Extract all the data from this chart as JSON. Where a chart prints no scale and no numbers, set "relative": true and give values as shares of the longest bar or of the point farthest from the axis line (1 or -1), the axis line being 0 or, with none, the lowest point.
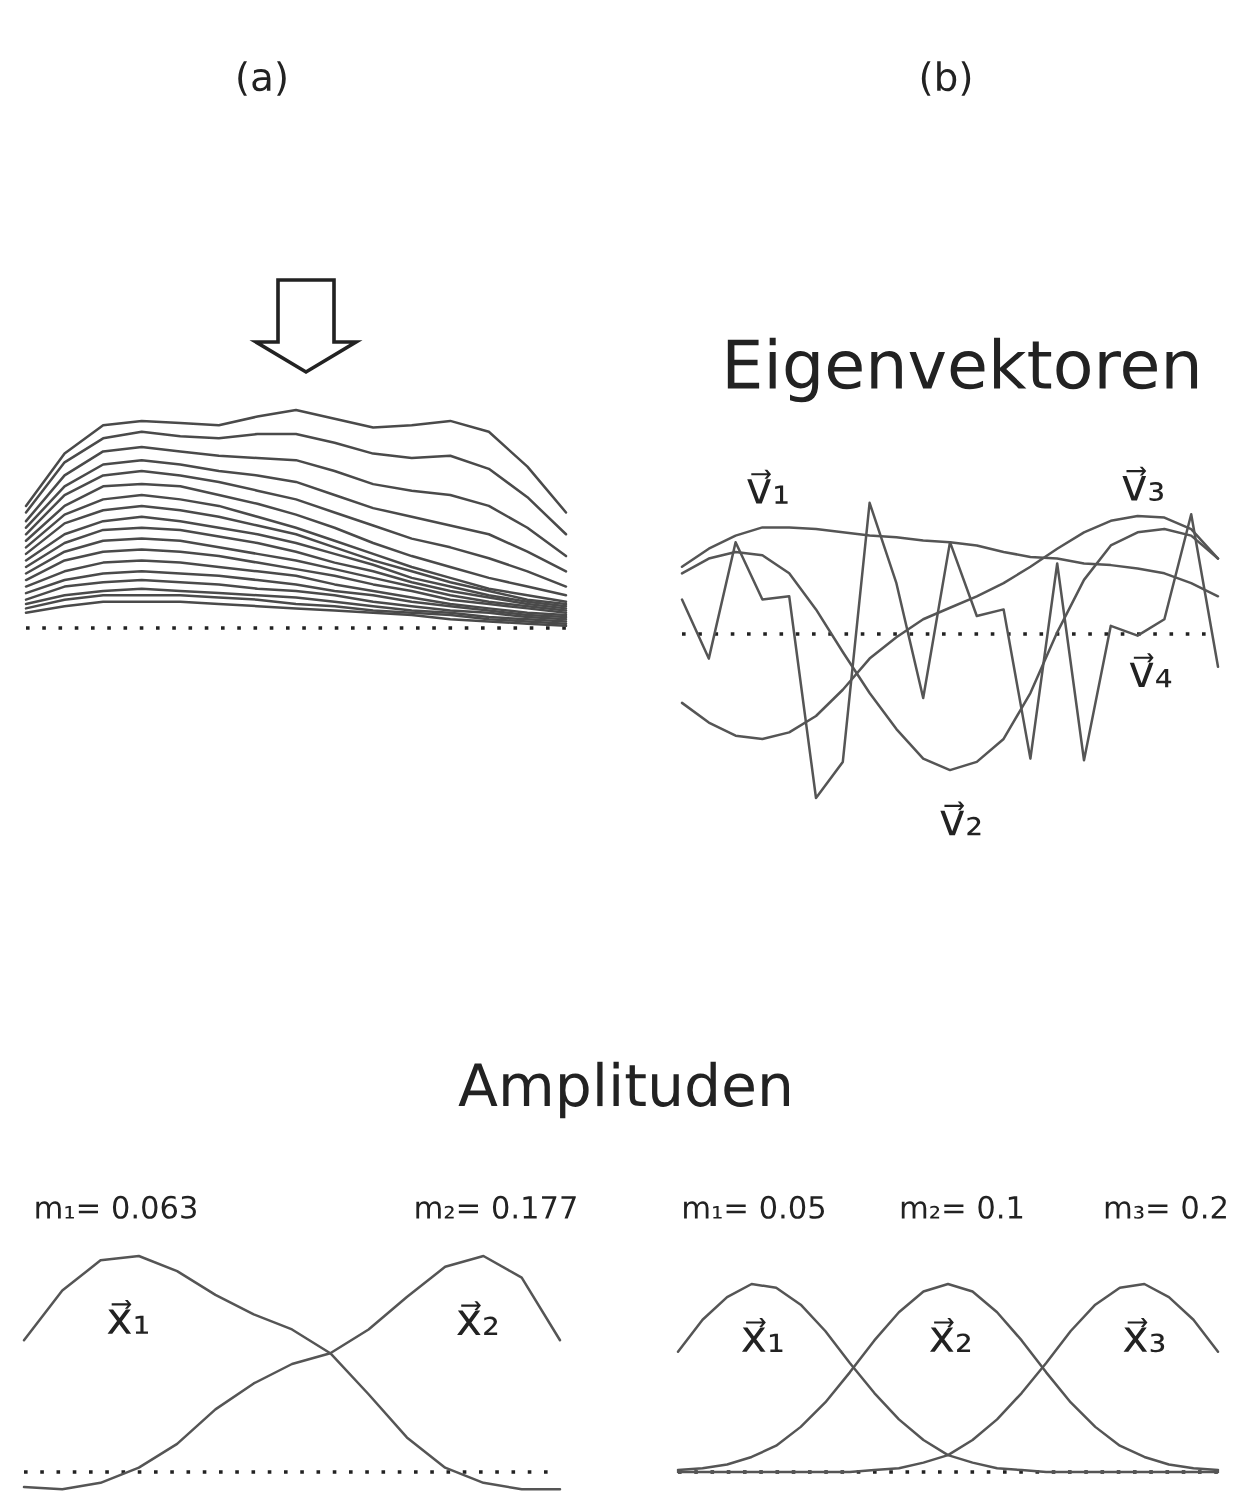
{
  "chart_data": [
    {
      "type": "line",
      "title": "(a)",
      "relative": true,
      "tick_labels": false,
      "categories": [
        null,
        null,
        null,
        null,
        null,
        null,
        null,
        null,
        null,
        null,
        null,
        null,
        null,
        null,
        null
      ],
      "ref_lines": [
        {
          "axis": "y",
          "value": 0,
          "line_style": "dotted"
        }
      ],
      "series": [
        {
          "color": "#4a4a4a",
          "values": [
            0.56,
            0.8,
            0.93,
            0.95,
            0.94,
            0.93,
            0.97,
            1.0,
            0.96,
            0.92,
            0.93,
            0.95,
            0.9,
            0.74,
            0.53
          ]
        },
        {
          "color": "#4a4a4a",
          "values": [
            0.53,
            0.76,
            0.87,
            0.9,
            0.88,
            0.87,
            0.89,
            0.89,
            0.85,
            0.8,
            0.78,
            0.79,
            0.73,
            0.6,
            0.43
          ]
        },
        {
          "color": "#4a4a4a",
          "values": [
            0.49,
            0.7,
            0.81,
            0.83,
            0.81,
            0.79,
            0.78,
            0.77,
            0.72,
            0.66,
            0.63,
            0.61,
            0.56,
            0.46,
            0.33
          ]
        },
        {
          "color": "#4a4a4a",
          "values": [
            0.46,
            0.65,
            0.75,
            0.77,
            0.75,
            0.72,
            0.7,
            0.67,
            0.61,
            0.55,
            0.51,
            0.47,
            0.43,
            0.35,
            0.26
          ]
        },
        {
          "color": "#4a4a4a",
          "values": [
            0.43,
            0.61,
            0.7,
            0.72,
            0.7,
            0.67,
            0.63,
            0.59,
            0.53,
            0.47,
            0.41,
            0.37,
            0.32,
            0.26,
            0.19
          ]
        },
        {
          "color": "#4a4a4a",
          "values": [
            0.4,
            0.56,
            0.65,
            0.66,
            0.65,
            0.61,
            0.57,
            0.52,
            0.46,
            0.39,
            0.33,
            0.28,
            0.23,
            0.19,
            0.15
          ]
        },
        {
          "color": "#4a4a4a",
          "values": [
            0.37,
            0.52,
            0.59,
            0.61,
            0.59,
            0.56,
            0.51,
            0.46,
            0.4,
            0.34,
            0.28,
            0.23,
            0.18,
            0.15,
            0.12
          ]
        },
        {
          "color": "#4a4a4a",
          "values": [
            0.34,
            0.48,
            0.54,
            0.56,
            0.54,
            0.51,
            0.47,
            0.43,
            0.37,
            0.31,
            0.26,
            0.21,
            0.17,
            0.13,
            0.11
          ]
        },
        {
          "color": "#4a4a4a",
          "values": [
            0.31,
            0.43,
            0.49,
            0.51,
            0.49,
            0.46,
            0.43,
            0.39,
            0.34,
            0.29,
            0.23,
            0.19,
            0.15,
            0.12,
            0.1
          ]
        },
        {
          "color": "#4a4a4a",
          "values": [
            0.28,
            0.39,
            0.45,
            0.46,
            0.45,
            0.42,
            0.39,
            0.35,
            0.3,
            0.26,
            0.21,
            0.17,
            0.14,
            0.11,
            0.09
          ]
        },
        {
          "color": "#4a4a4a",
          "values": [
            0.25,
            0.35,
            0.4,
            0.41,
            0.4,
            0.37,
            0.34,
            0.31,
            0.27,
            0.23,
            0.19,
            0.15,
            0.12,
            0.1,
            0.08
          ]
        },
        {
          "color": "#4a4a4a",
          "values": [
            0.22,
            0.31,
            0.35,
            0.36,
            0.35,
            0.33,
            0.3,
            0.27,
            0.24,
            0.2,
            0.17,
            0.13,
            0.11,
            0.09,
            0.07
          ]
        },
        {
          "color": "#4a4a4a",
          "values": [
            0.19,
            0.26,
            0.3,
            0.31,
            0.3,
            0.28,
            0.26,
            0.24,
            0.2,
            0.17,
            0.14,
            0.11,
            0.09,
            0.07,
            0.06
          ]
        },
        {
          "color": "#4a4a4a",
          "values": [
            0.16,
            0.22,
            0.25,
            0.26,
            0.25,
            0.24,
            0.22,
            0.2,
            0.17,
            0.15,
            0.12,
            0.1,
            0.08,
            0.06,
            0.05
          ]
        },
        {
          "color": "#4a4a4a",
          "values": [
            0.13,
            0.19,
            0.21,
            0.22,
            0.21,
            0.2,
            0.18,
            0.17,
            0.15,
            0.12,
            0.1,
            0.08,
            0.07,
            0.05,
            0.04
          ]
        },
        {
          "color": "#4a4a4a",
          "values": [
            0.11,
            0.15,
            0.17,
            0.18,
            0.17,
            0.16,
            0.15,
            0.14,
            0.12,
            0.1,
            0.08,
            0.07,
            0.05,
            0.04,
            0.03
          ]
        },
        {
          "color": "#4a4a4a",
          "values": [
            0.09,
            0.13,
            0.15,
            0.15,
            0.15,
            0.14,
            0.13,
            0.11,
            0.1,
            0.08,
            0.07,
            0.06,
            0.04,
            0.03,
            0.02
          ]
        },
        {
          "color": "#4a4a4a",
          "values": [
            0.07,
            0.1,
            0.12,
            0.12,
            0.12,
            0.11,
            0.1,
            0.09,
            0.08,
            0.07,
            0.06,
            0.04,
            0.03,
            0.02,
            0.01
          ]
        }
      ]
    },
    {
      "type": "line",
      "title": "(b)",
      "subtitle": "Eigenvektoren",
      "relative": true,
      "tick_labels": false,
      "categories": [
        null,
        null,
        null,
        null,
        null,
        null,
        null,
        null,
        null,
        null,
        null,
        null,
        null,
        null,
        null,
        null,
        null,
        null,
        null,
        null,
        null
      ],
      "ref_lines": [
        {
          "axis": "y",
          "value": 0,
          "line_style": "dotted"
        }
      ],
      "series": [
        {
          "name": "v⃗₁",
          "color": "#555555",
          "values": [
            0.41,
            0.52,
            0.6,
            0.65,
            0.65,
            0.64,
            0.62,
            0.6,
            0.59,
            0.57,
            0.56,
            0.54,
            0.5,
            0.47,
            0.46,
            0.43,
            0.42,
            0.4,
            0.37,
            0.31,
            0.23
          ]
        },
        {
          "name": "v⃗₂",
          "color": "#555555",
          "values": [
            0.37,
            0.46,
            0.5,
            0.48,
            0.37,
            0.15,
            -0.11,
            -0.36,
            -0.58,
            -0.76,
            -0.83,
            -0.78,
            -0.64,
            -0.36,
            0.01,
            0.33,
            0.54,
            0.62,
            0.64,
            0.6,
            0.46
          ]
        },
        {
          "name": "v⃗₃",
          "color": "#555555",
          "values": [
            -0.42,
            -0.54,
            -0.62,
            -0.64,
            -0.6,
            -0.5,
            -0.34,
            -0.15,
            -0.02,
            0.09,
            0.16,
            0.23,
            0.31,
            0.41,
            0.52,
            0.62,
            0.69,
            0.72,
            0.71,
            0.64,
            0.46
          ]
        },
        {
          "name": "v⃗₄",
          "color": "#555555",
          "values": [
            0.21,
            -0.15,
            0.56,
            0.21,
            0.23,
            -1.0,
            -0.78,
            0.8,
            0.31,
            -0.39,
            0.56,
            0.11,
            0.15,
            -0.76,
            0.43,
            -0.77,
            0.05,
            -0.01,
            0.09,
            0.73,
            -0.2
          ]
        }
      ]
    },
    {
      "type": "line",
      "title": "Amplituden",
      "relative": true,
      "tick_labels": false,
      "categories": [
        null,
        null,
        null,
        null,
        null,
        null,
        null,
        null,
        null,
        null,
        null,
        null,
        null,
        null,
        null
      ],
      "annotations": [
        "m₁= 0.063",
        "m₂= 0.177"
      ],
      "ref_lines": [
        {
          "axis": "y",
          "value": 0,
          "line_style": "dotted"
        }
      ],
      "series": [
        {
          "name": "x⃗₁",
          "color": "#555555",
          "values": [
            0.61,
            0.84,
            0.98,
            1.0,
            0.93,
            0.82,
            0.73,
            0.66,
            0.55,
            0.36,
            0.16,
            0.02,
            -0.05,
            -0.08,
            -0.08
          ]
        },
        {
          "name": "x⃗₂",
          "color": "#555555",
          "values": [
            -0.07,
            -0.08,
            -0.05,
            0.02,
            0.13,
            0.29,
            0.41,
            0.5,
            0.55,
            0.66,
            0.81,
            0.95,
            1.0,
            0.9,
            0.61
          ]
        }
      ]
    },
    {
      "type": "line",
      "relative": true,
      "tick_labels": false,
      "categories": [
        null,
        null,
        null,
        null,
        null,
        null,
        null,
        null,
        null,
        null,
        null,
        null,
        null,
        null,
        null,
        null,
        null,
        null,
        null,
        null,
        null,
        null,
        null
      ],
      "annotations": [
        "m₁= 0.05",
        "m₂= 0.1",
        "m₃= 0.2"
      ],
      "ref_lines": [
        {
          "axis": "y",
          "value": 0,
          "line_style": "dotted"
        }
      ],
      "series": [
        {
          "name": "x⃗₁",
          "color": "#555555",
          "values": [
            0.64,
            0.81,
            0.93,
            1.0,
            0.98,
            0.89,
            0.75,
            0.58,
            0.42,
            0.28,
            0.17,
            0.09,
            0.05,
            0.02,
            0.01,
            0,
            0,
            0,
            0,
            0,
            0,
            0,
            0
          ]
        },
        {
          "name": "x⃗₂",
          "color": "#555555",
          "values": [
            0.01,
            0.02,
            0.04,
            0.08,
            0.14,
            0.24,
            0.37,
            0.53,
            0.7,
            0.85,
            0.96,
            1.0,
            0.96,
            0.85,
            0.7,
            0.53,
            0.37,
            0.24,
            0.14,
            0.08,
            0.04,
            0.02,
            0.01
          ]
        },
        {
          "name": "x⃗₃",
          "color": "#555555",
          "values": [
            0,
            0,
            0,
            0,
            0,
            0,
            0,
            0,
            0.01,
            0.02,
            0.05,
            0.09,
            0.17,
            0.28,
            0.42,
            0.58,
            0.75,
            0.89,
            0.98,
            1.0,
            0.93,
            0.81,
            0.64
          ]
        }
      ]
    }
  ]
}
